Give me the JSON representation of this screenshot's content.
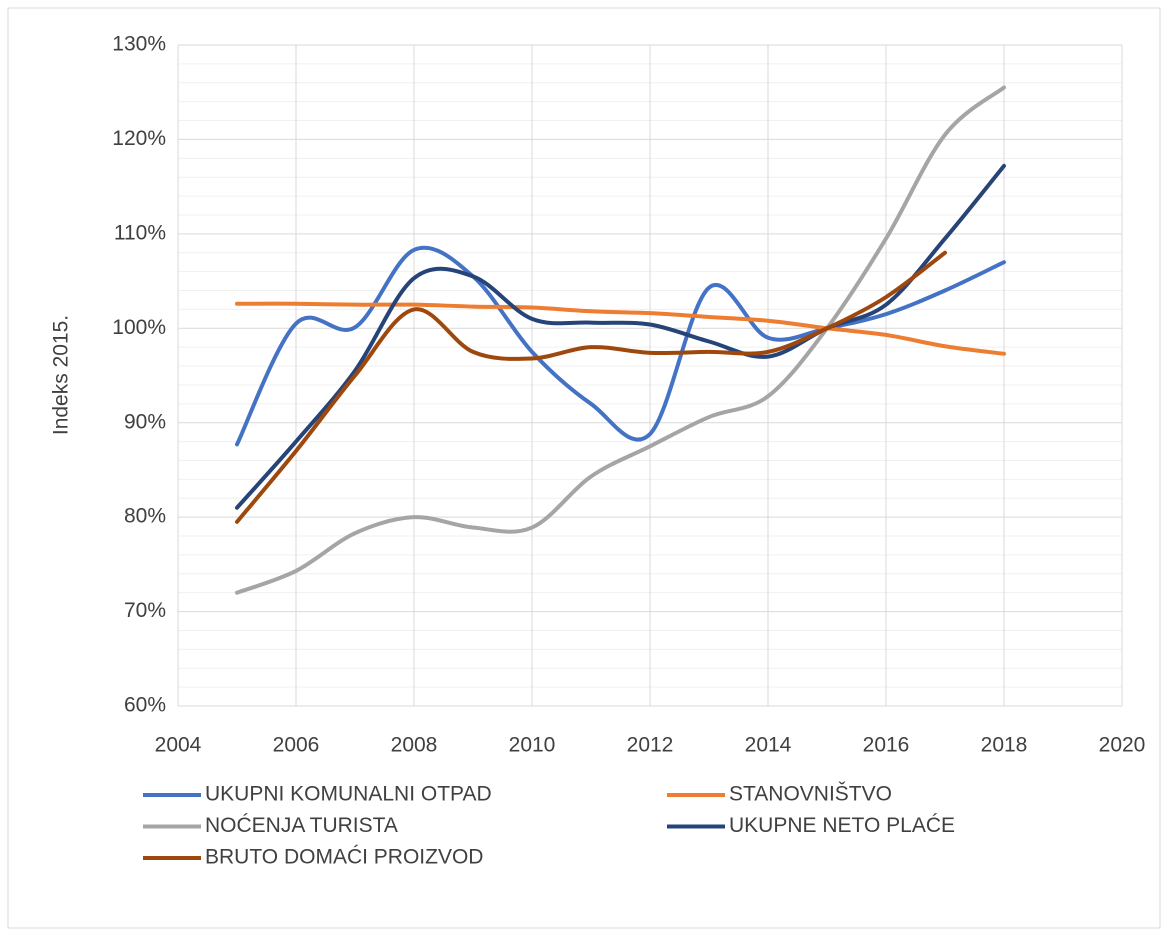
{
  "chart_data": {
    "type": "line",
    "y_label": "Indeks 2015.",
    "x": [
      2005,
      2006,
      2007,
      2008,
      2009,
      2010,
      2011,
      2012,
      2013,
      2014,
      2015,
      2016,
      2017,
      2018
    ],
    "series": [
      {
        "name": "UKUPNI KOMUNALNI OTPAD",
        "color": "#4472c4",
        "values": [
          87.7,
          100.5,
          100.1,
          108.3,
          105.5,
          97.5,
          92,
          88.8,
          104.3,
          99,
          100,
          101.5,
          104,
          107
        ]
      },
      {
        "name": "STANOVNIŠTVO",
        "color": "#ed7d31",
        "values": [
          102.6,
          102.6,
          102.5,
          102.5,
          102.3,
          102.2,
          101.8,
          101.6,
          101.2,
          100.8,
          100,
          99.3,
          98.1,
          97.3
        ]
      },
      {
        "name": "NOĆENJA TURISTA",
        "color": "#a5a5a5",
        "values": [
          72,
          74.3,
          78.3,
          80,
          78.9,
          78.9,
          84.3,
          87.5,
          90.6,
          92.8,
          100,
          109.5,
          120.5,
          125.5
        ]
      },
      {
        "name": "UKUPNE NETO PLAĆE",
        "color": "#264478",
        "values": [
          81,
          88,
          95.5,
          105.3,
          105.5,
          101,
          100.6,
          100.4,
          98.6,
          97,
          100,
          102.5,
          109.5,
          117.2
        ]
      },
      {
        "name": "BRUTO DOMAĆI PROIZVOD",
        "color": "#9e480e",
        "values": [
          79.5,
          87,
          95,
          102,
          97.5,
          96.8,
          98,
          97.4,
          97.5,
          97.5,
          100,
          103.3,
          108,
          null
        ]
      }
    ],
    "xlim": [
      2004,
      2020
    ],
    "xticks": [
      2004,
      2006,
      2008,
      2010,
      2012,
      2014,
      2016,
      2018,
      2020
    ],
    "ylim": [
      60,
      130
    ],
    "yticks": [
      {
        "value": 60,
        "label": "60%"
      },
      {
        "value": 70,
        "label": "70%"
      },
      {
        "value": 80,
        "label": "80%"
      },
      {
        "value": 90,
        "label": "90%"
      },
      {
        "value": 100,
        "label": "100%"
      },
      {
        "value": 110,
        "label": "110%"
      },
      {
        "value": 120,
        "label": "120%"
      },
      {
        "value": 130,
        "label": "130%"
      }
    ],
    "grid": true,
    "legend": "bottom"
  }
}
